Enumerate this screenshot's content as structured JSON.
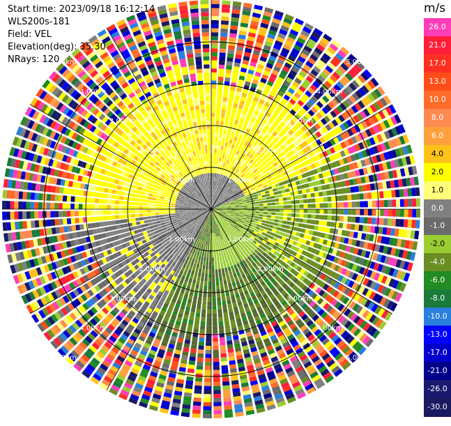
{
  "info": {
    "start_time": "Start time: 2023/09/18 16:12:14",
    "device": "WLS200s-181",
    "field": "Field: VEL",
    "elevation": "Elevation(deg): 35.30",
    "nrays": "NRays: 120"
  },
  "colorbar": {
    "units": "m/s",
    "labels": [
      "26.0",
      "21.0",
      "17.0",
      "13.0",
      "10.0",
      "8.0",
      "6.0",
      "4.0",
      "2.0",
      "1.0",
      "0.0",
      "-1.0",
      "-2.0",
      "-4.0",
      "-6.0",
      "-8.0",
      "-10.0",
      "-13.0",
      "-17.0",
      "-21.0",
      "-26.0",
      "-30.0"
    ],
    "colors": [
      "#ff3db8",
      "#ff1f3a",
      "#ff3020",
      "#ff4d1a",
      "#ff6b2a",
      "#ff8a50",
      "#ffa03c",
      "#ffc21a",
      "#ffff00",
      "#ffff7a",
      "#808080",
      "#6b6b6b",
      "#9acd32",
      "#6b8e23",
      "#228b22",
      "#1a7a3a",
      "#2a7fdc",
      "#0000ff",
      "#0000cd",
      "#00008b",
      "#191970",
      "#1a1a60"
    ]
  },
  "range_labels": [
    "1.00km",
    "2.00km",
    "3.00km",
    "4.00km",
    "5.00km"
  ],
  "chart_data": {
    "type": "heatmap",
    "projection": "polar PPI",
    "field": "VEL",
    "units": "m/s",
    "nrays": 120,
    "range_rings_km": [
      1,
      2,
      3,
      4,
      5
    ],
    "value_range": [
      -30,
      26
    ],
    "pattern": {
      "north_sector_inner": "1.0 to 4.0 m/s (yellow)",
      "west_inner": "0.0 to -1.0 m/s (gray)",
      "south_east_inner": "-2.0 to -6.0 m/s (green)",
      "outer_ring": "noise / mixed values"
    }
  }
}
